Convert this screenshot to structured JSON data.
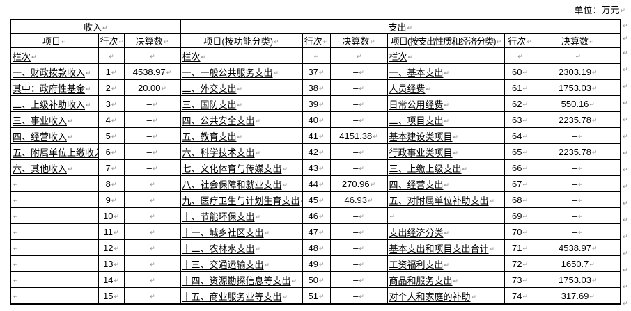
{
  "unit_label": "单位：万元",
  "eol_mark": "↵",
  "colors": {
    "text": "#000000",
    "border": "#000000",
    "mark_gray": "#8a8a8a",
    "background": "#ffffff"
  },
  "table": {
    "income_header": "收入",
    "expense_header": "支出",
    "columns": {
      "item": "项目",
      "row_no": "行次",
      "value": "决算数",
      "item_func": "项目(按功能分类)",
      "item_econ": "项目(按支出性质和经济分类)"
    },
    "rows": [
      {
        "income": {
          "item": "栏次",
          "ind": 0,
          "row": "",
          "val": ""
        },
        "func": {
          "item": "栏次",
          "ind": 0,
          "row": "",
          "val": ""
        },
        "econ": {
          "item": "栏次",
          "ind": 0,
          "row": "",
          "val": ""
        }
      },
      {
        "income": {
          "item": "一、财政拨款收入",
          "ind": 0,
          "row": "1",
          "val": "4538.97"
        },
        "func": {
          "item": "一、一般公共服务支出",
          "ind": 0,
          "row": "37",
          "val": "–"
        },
        "econ": {
          "item": "一、基本支出",
          "ind": 0,
          "row": "60",
          "val": "2303.19"
        }
      },
      {
        "income": {
          "item": "其中：政府性基金",
          "ind": 1,
          "row": "2",
          "val": "20.00"
        },
        "func": {
          "item": "二、外交支出",
          "ind": 0,
          "row": "38",
          "val": "–"
        },
        "econ": {
          "item": "人员经费",
          "ind": 1,
          "row": "61",
          "val": "1753.03"
        }
      },
      {
        "income": {
          "item": "二、上级补助收入",
          "ind": 0,
          "row": "3",
          "val": "–"
        },
        "func": {
          "item": "三、国防支出",
          "ind": 0,
          "row": "39",
          "val": "–"
        },
        "econ": {
          "item": "日常公用经费",
          "ind": 1,
          "row": "62",
          "val": "550.16"
        }
      },
      {
        "income": {
          "item": "三、事业收入",
          "ind": 0,
          "row": "4",
          "val": "–"
        },
        "func": {
          "item": "四、公共安全支出",
          "ind": 0,
          "row": "40",
          "val": "–"
        },
        "econ": {
          "item": "二、项目支出",
          "ind": 0,
          "row": "63",
          "val": "2235.78"
        }
      },
      {
        "income": {
          "item": "四、经营收入",
          "ind": 0,
          "row": "5",
          "val": "–"
        },
        "func": {
          "item": "五、教育支出",
          "ind": 0,
          "row": "41",
          "val": "4151.38"
        },
        "econ": {
          "item": "基本建设类项目",
          "ind": 1,
          "row": "64",
          "val": "–"
        }
      },
      {
        "income": {
          "item": "五、附属单位上缴收入",
          "ind": 0,
          "row": "6",
          "val": "–"
        },
        "func": {
          "item": "六、科学技术支出",
          "ind": 0,
          "row": "42",
          "val": "–"
        },
        "econ": {
          "item": "行政事业类项目",
          "ind": 1,
          "row": "65",
          "val": "2235.78"
        }
      },
      {
        "income": {
          "item": "六、其他收入",
          "ind": 0,
          "row": "7",
          "val": "–"
        },
        "func": {
          "item": "七、文化体育与传媒支出",
          "ind": 0,
          "row": "43",
          "val": "–"
        },
        "econ": {
          "item": "三、上缴上级支出",
          "ind": 0,
          "row": "66",
          "val": "–"
        }
      },
      {
        "income": {
          "item": "",
          "ind": 0,
          "row": "8",
          "val": ""
        },
        "func": {
          "item": "八、社会保障和就业支出",
          "ind": 0,
          "row": "44",
          "val": "270.96"
        },
        "econ": {
          "item": "四、经营支出",
          "ind": 0,
          "row": "67",
          "val": "–"
        }
      },
      {
        "income": {
          "item": "",
          "ind": 0,
          "row": "9",
          "val": ""
        },
        "func": {
          "item": "九、医疗卫生与计划生育支出",
          "ind": 0,
          "row": "45",
          "val": "46.93"
        },
        "econ": {
          "item": "五、对附属单位补助支出",
          "ind": 0,
          "row": "68",
          "val": "–"
        }
      },
      {
        "income": {
          "item": "",
          "ind": 0,
          "row": "10",
          "val": ""
        },
        "func": {
          "item": "十、节能环保支出",
          "ind": 0,
          "row": "46",
          "val": "–"
        },
        "econ": {
          "item": "",
          "ind": 0,
          "row": "69",
          "val": "–"
        }
      },
      {
        "income": {
          "item": "",
          "ind": 0,
          "row": "11",
          "val": ""
        },
        "func": {
          "item": "十一、城乡社区支出",
          "ind": 0,
          "row": "47",
          "val": "–"
        },
        "econ": {
          "item": "支出经济分类",
          "ind": 0,
          "row": "70",
          "val": "–"
        }
      },
      {
        "income": {
          "item": "",
          "ind": 0,
          "row": "12",
          "val": ""
        },
        "func": {
          "item": "十二、农林水支出",
          "ind": 0,
          "row": "48",
          "val": "–"
        },
        "econ": {
          "item": "基本支出和项目支出合计",
          "ind": 0,
          "row": "71",
          "val": "4538.97"
        }
      },
      {
        "income": {
          "item": "",
          "ind": 0,
          "row": "13",
          "val": ""
        },
        "func": {
          "item": "十三、交通运输支出",
          "ind": 0,
          "row": "49",
          "val": "–"
        },
        "econ": {
          "item": "工资福利支出",
          "ind": 1,
          "row": "72",
          "val": "1650.7"
        }
      },
      {
        "income": {
          "item": "",
          "ind": 0,
          "row": "14",
          "val": ""
        },
        "func": {
          "item": "十四、资源勘探信息等支出",
          "ind": 0,
          "row": "50",
          "val": "–"
        },
        "econ": {
          "item": "商品和服务支出",
          "ind": 1,
          "row": "73",
          "val": "1753.03"
        }
      },
      {
        "income": {
          "item": "",
          "ind": 0,
          "row": "15",
          "val": ""
        },
        "func": {
          "item": "十五、商业服务业等支出",
          "ind": 0,
          "row": "51",
          "val": "–"
        },
        "econ": {
          "item": "对个人和家庭的补助",
          "ind": 1,
          "row": "74",
          "val": "317.69"
        }
      }
    ]
  }
}
